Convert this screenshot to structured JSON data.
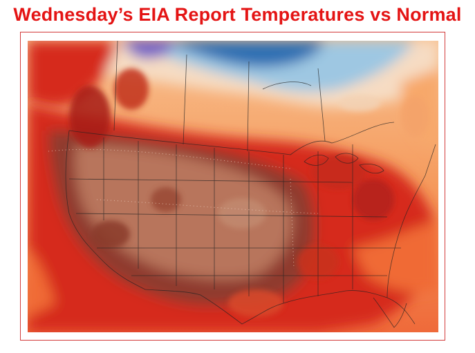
{
  "title": "Wednesday’s EIA Report Temperatures vs Normal",
  "map": {
    "region": "Contiguous United States",
    "palette": {
      "extreme_warm": "#8f3b2d",
      "much_warm": "#b8745c",
      "warm": "#d62a1e",
      "mild_warm": "#f06a36",
      "slight_warm": "#f7a86b",
      "near_normal": "#f6dcc3",
      "cool": "#9ec7e2",
      "cold": "#2f6fb3",
      "very_cold": "#6a5cc8",
      "frame_border": "#d23a3a",
      "title_color": "#e41414"
    }
  }
}
